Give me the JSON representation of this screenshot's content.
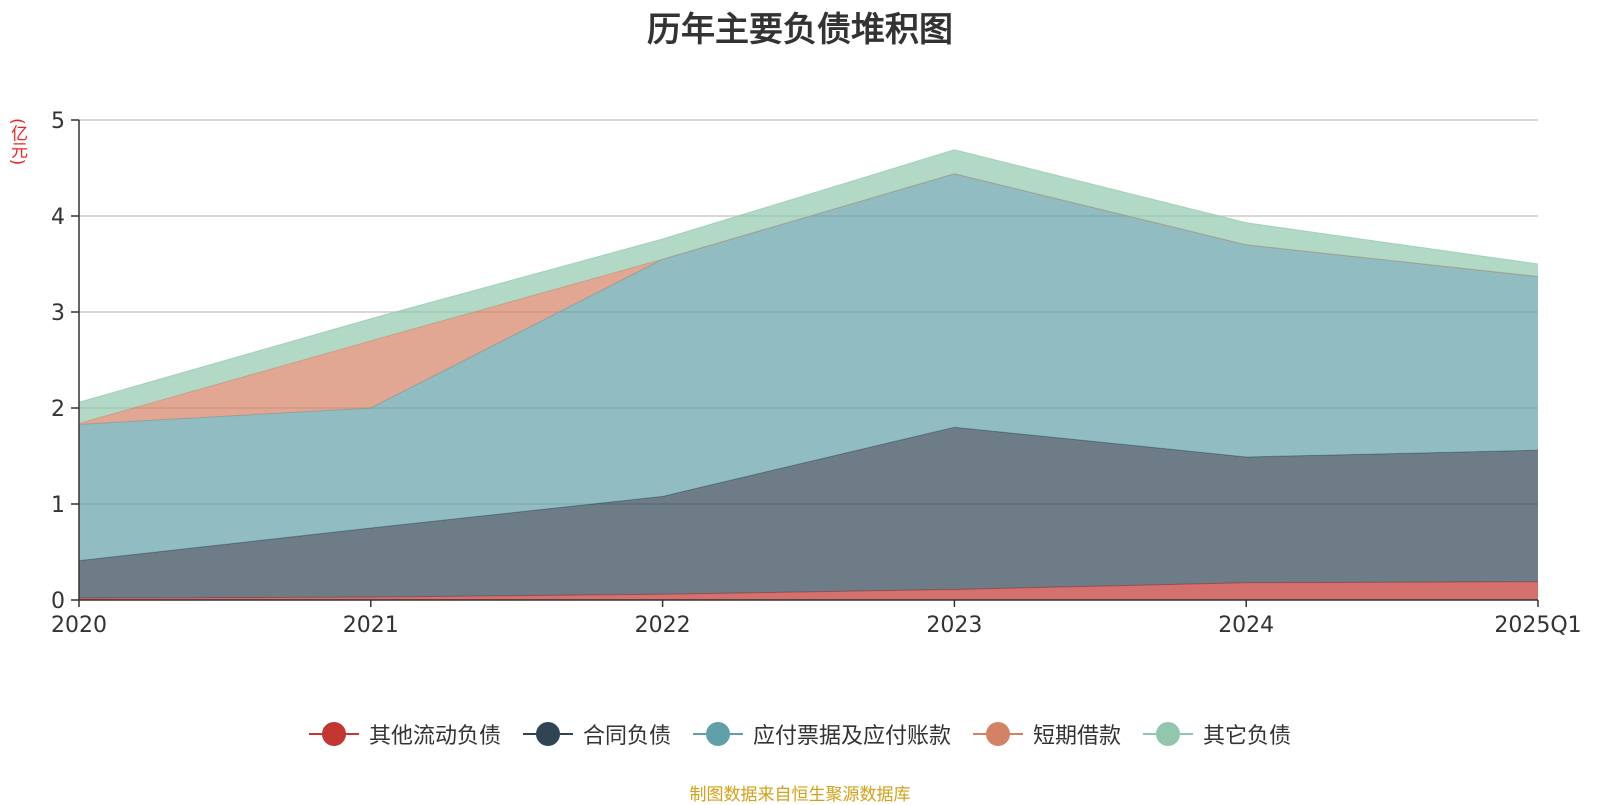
{
  "chart_data": {
    "type": "area",
    "stacked": true,
    "title": "历年主要负债堆积图",
    "ylabel": "(亿元)",
    "categories": [
      "2020",
      "2021",
      "2022",
      "2023",
      "2024",
      "2025Q1"
    ],
    "ylim": [
      0,
      5
    ],
    "yticks": [
      0,
      1,
      2,
      3,
      4,
      5
    ],
    "grid": true,
    "legend_position": "bottom",
    "series": [
      {
        "name": "其他流动负债",
        "color": "#c23531",
        "values": [
          0.02,
          0.03,
          0.06,
          0.11,
          0.18,
          0.19
        ]
      },
      {
        "name": "合同负债",
        "color": "#2f4554",
        "values": [
          0.39,
          0.72,
          1.02,
          1.69,
          1.31,
          1.37
        ]
      },
      {
        "name": "应付票据及应付账款",
        "color": "#61a0a8",
        "values": [
          1.42,
          1.25,
          2.47,
          2.64,
          2.21,
          1.81
        ]
      },
      {
        "name": "短期借款",
        "color": "#d48265",
        "values": [
          0.01,
          0.7,
          0.0,
          0.0,
          0.0,
          0.0
        ]
      },
      {
        "name": "其它负债",
        "color": "#91c7ae",
        "values": [
          0.22,
          0.23,
          0.21,
          0.25,
          0.23,
          0.13
        ]
      }
    ]
  },
  "source_note": "制图数据来自恒生聚源数据库"
}
